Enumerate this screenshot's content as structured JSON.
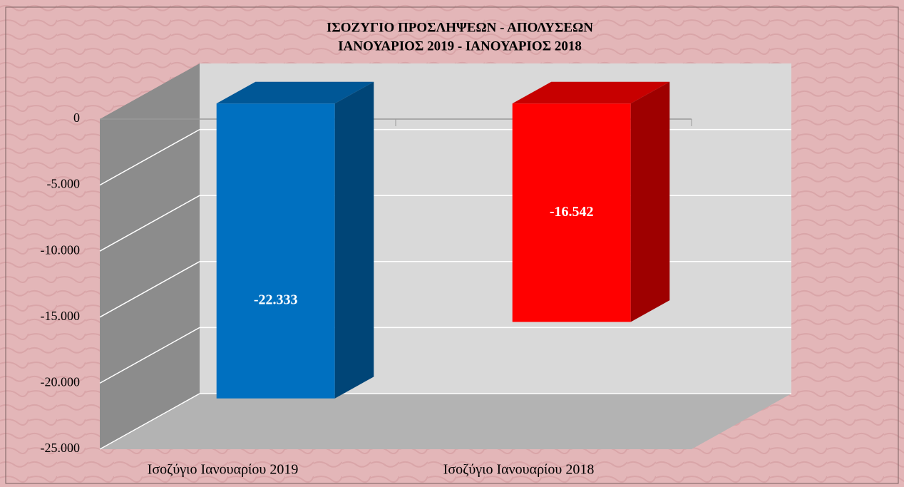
{
  "chart_data": {
    "type": "bar3d",
    "title": "ΙΣΟΖΥΓΙΟ  ΠΡΟΣΛΗΨΕΩΝ  -  ΑΠΟΛΥΣΕΩΝ",
    "subtitle": "ΙΑΝΟΥΑΡΙΟΣ 2019  -  ΙΑΝΟΥΑΡΙΟΣ 2018",
    "categories": [
      "Ισοζύγιο Ιανουαρίου 2019",
      "Ισοζύγιο Ιανουαρίου 2018"
    ],
    "values": [
      -22333,
      -16542
    ],
    "value_labels": [
      "-22.333",
      "-16.542"
    ],
    "colors": [
      "#0070c0",
      "#ff0000"
    ],
    "ylim": [
      -25000,
      0
    ],
    "yticks": [
      0,
      {
        "value": -5000,
        "label": "-5.000"
      },
      {
        "value": -10000,
        "label": "-10.000"
      },
      {
        "value": -15000,
        "label": "-15.000"
      },
      {
        "value": -20000,
        "label": "-20.000"
      },
      {
        "value": -25000,
        "label": "-25.000"
      }
    ],
    "grid": true
  }
}
